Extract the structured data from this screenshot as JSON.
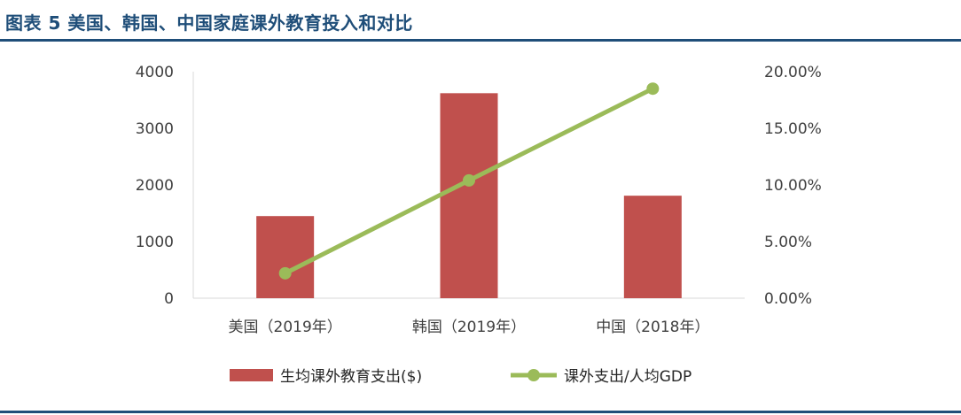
{
  "title": "图表 5 美国、韩国、中国家庭课外教育投入和对比",
  "chart_data": {
    "type": "bar",
    "categories": [
      "美国（2019年）",
      "韩国（2019年）",
      "中国（2018年）"
    ],
    "series": [
      {
        "name": "生均课外教育支出($)",
        "type": "bar",
        "axis": "left",
        "values": [
          1450,
          3620,
          1810
        ],
        "color": "#c0504d"
      },
      {
        "name": "课外支出/人均GDP",
        "type": "line",
        "axis": "right",
        "values": [
          0.022,
          0.104,
          0.185
        ],
        "color": "#9bbb59"
      }
    ],
    "y_left": {
      "ticks": [
        "0",
        "1000",
        "2000",
        "3000",
        "4000"
      ],
      "ylim": [
        0,
        4000
      ]
    },
    "y_right": {
      "ticks": [
        "0.00%",
        "5.00%",
        "10.00%",
        "15.00%",
        "20.00%"
      ],
      "ylim": [
        0,
        0.2
      ]
    },
    "legend_position": "bottom",
    "grid": false
  }
}
